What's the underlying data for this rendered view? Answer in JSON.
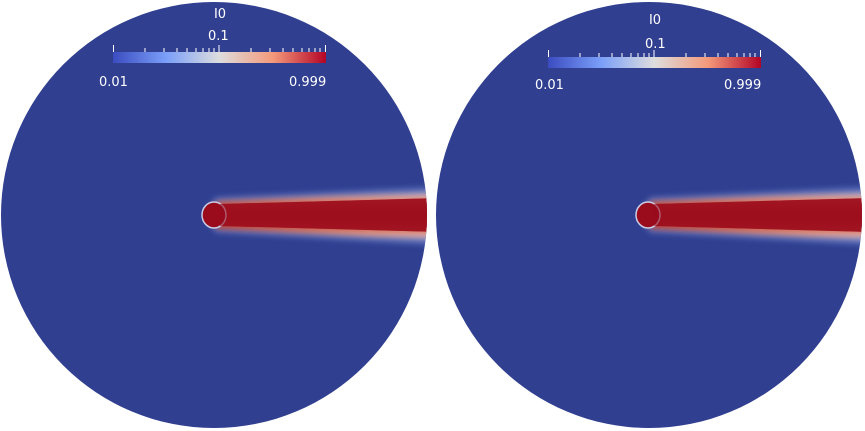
{
  "colors": {
    "background": "#303f90",
    "field_low": "#3b4cc0",
    "field_high": "#b40426",
    "text": "#ffffff"
  },
  "views": [
    {
      "scalar_bar": {
        "title": "I0",
        "mid_label": "0.1",
        "min_label": "0.01",
        "max_label": "0.999",
        "scale": "log",
        "colormap": "cool-to-warm"
      }
    },
    {
      "scalar_bar": {
        "title": "I0",
        "mid_label": "0.1",
        "min_label": "0.01",
        "max_label": "0.999",
        "scale": "log",
        "colormap": "cool-to-warm"
      }
    }
  ]
}
